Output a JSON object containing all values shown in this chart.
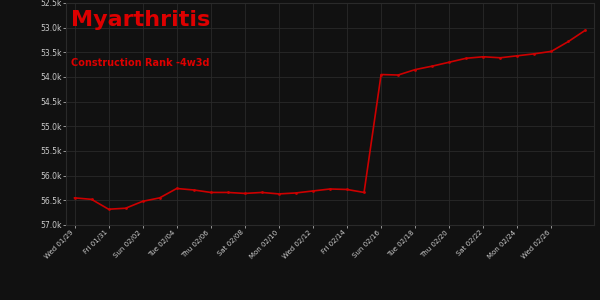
{
  "title": "Myarthritis",
  "subtitle": "Construction Rank -4w3d",
  "bg_color": "#111111",
  "plot_bg_color": "#111111",
  "grid_color": "#2a2a2a",
  "line_color": "#cc0000",
  "text_color": "#cccccc",
  "title_color": "#dd0000",
  "x_labels": [
    "Wed 01/29",
    "Fri 01/31",
    "Sun 02/02",
    "Tue 02/04",
    "Thu 02/06",
    "Sat 02/08",
    "Mon 02/10",
    "Wed 02/12",
    "Fri 02/14",
    "Sun 02/16",
    "Tue 02/18",
    "Thu 02/20",
    "Sat 02/22",
    "Mon 02/24",
    "Wed 02/26"
  ],
  "ylim_top": 52500,
  "ylim_bottom": 57000,
  "ytick_vals": [
    52500,
    53000,
    53500,
    54000,
    54500,
    55000,
    55500,
    56000,
    56500,
    57000
  ],
  "ytick_labels": [
    "52.5k",
    "53.0k",
    "53.5k",
    "54.0k",
    "54.5k",
    "55.0k",
    "55.5k",
    "56.0k",
    "56.5k",
    "57.0k"
  ],
  "x_tick_positions": [
    0,
    2,
    4,
    6,
    8,
    10,
    12,
    14,
    16,
    18,
    20,
    22,
    24,
    26,
    28
  ],
  "y_data": [
    56450,
    56480,
    56680,
    56660,
    56520,
    56450,
    56260,
    56290,
    56340,
    56340,
    56360,
    56340,
    56370,
    56350,
    56310,
    56270,
    56280,
    56340,
    53950,
    53960,
    53850,
    53780,
    53700,
    53620,
    53590,
    53610,
    53570,
    53530,
    53480,
    53280,
    53050
  ]
}
